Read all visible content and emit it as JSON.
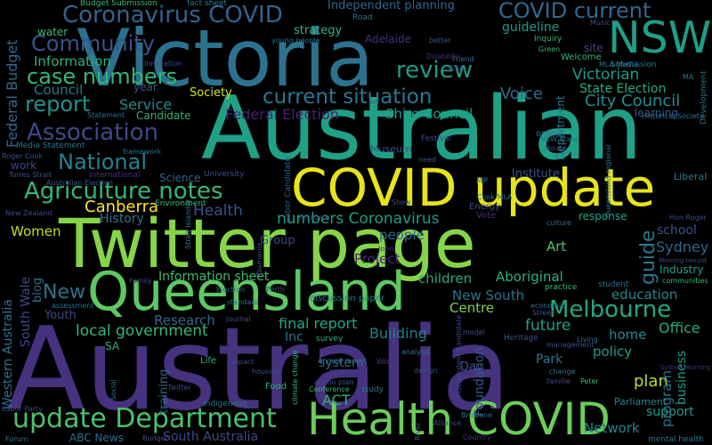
{
  "words": [
    {
      "text": "Australia",
      "color": "#46327e"
    },
    {
      "text": "Australian",
      "color": "#1fa187"
    },
    {
      "text": "Victoria",
      "color": "#2c728e"
    },
    {
      "text": "Twitter page",
      "color": "#86d549"
    },
    {
      "text": "COVID update",
      "color": "#e7e419"
    },
    {
      "text": "Queensland",
      "color": "#5ec962"
    },
    {
      "text": "NSW",
      "color": "#1f9e89"
    },
    {
      "text": "Health COVID",
      "color": "#6ccd5a"
    },
    {
      "text": "update Department",
      "color": "#4ac16d"
    },
    {
      "text": "Coronavirus COVID",
      "color": "#33638d"
    },
    {
      "text": "COVID current",
      "color": "#31688e"
    },
    {
      "text": "Community",
      "color": "#3b528b"
    },
    {
      "text": "case numbers",
      "color": "#35b779"
    },
    {
      "text": "report",
      "color": "#21918c"
    },
    {
      "text": "Association",
      "color": "#3e4989"
    },
    {
      "text": "current situation",
      "color": "#2a788e"
    },
    {
      "text": "National",
      "color": "#26828e"
    },
    {
      "text": "Agriculture notes",
      "color": "#35b779"
    },
    {
      "text": "Melbourne",
      "color": "#22a884"
    },
    {
      "text": "review",
      "color": "#1f9a8a"
    },
    {
      "text": "Victorian",
      "color": "#1e9b8a"
    },
    {
      "text": "City Council",
      "color": "#218e8d"
    },
    {
      "text": "Voice",
      "color": "#2f6c8e"
    },
    {
      "text": "Federal Budget",
      "color": "#31688e"
    },
    {
      "text": "Information",
      "color": "#2db27d"
    },
    {
      "text": "Council",
      "color": "#2a788e"
    },
    {
      "text": "Service",
      "color": "#238a8d"
    },
    {
      "text": "Society",
      "color": "#d5e21a"
    },
    {
      "text": "Federal Election",
      "color": "#482173"
    },
    {
      "text": "Shire Council",
      "color": "#1f9e89"
    },
    {
      "text": "State Election",
      "color": "#25ab82"
    },
    {
      "text": "Canberra",
      "color": "#fde725"
    },
    {
      "text": "Health",
      "color": "#3b528b"
    },
    {
      "text": "History",
      "color": "#2c728e"
    },
    {
      "text": "Women",
      "color": "#c2df23"
    },
    {
      "text": "Information sheet",
      "color": "#3bbb75"
    },
    {
      "text": "New",
      "color": "#2c728e"
    },
    {
      "text": "New South",
      "color": "#2c728e"
    },
    {
      "text": "South Wale",
      "color": "#3e4989"
    },
    {
      "text": "Western Australia",
      "color": "#2c728e"
    },
    {
      "text": "numbers Coronavirus",
      "color": "#1f9e89"
    },
    {
      "text": "people",
      "color": "#31688e"
    },
    {
      "text": "Project",
      "color": "#482878"
    },
    {
      "text": "children",
      "color": "#25ab82"
    },
    {
      "text": "Aboriginal",
      "color": "#2db27d"
    },
    {
      "text": "final report",
      "color": "#22a884"
    },
    {
      "text": "local government",
      "color": "#35b779"
    },
    {
      "text": "Research",
      "color": "#31688e"
    },
    {
      "text": "Youth",
      "color": "#3e4989"
    },
    {
      "text": "Centre",
      "color": "#7ad151"
    },
    {
      "text": "future",
      "color": "#20a386"
    },
    {
      "text": "education",
      "color": "#26828e"
    },
    {
      "text": "home",
      "color": "#23898e"
    },
    {
      "text": "policy",
      "color": "#1f9e89"
    },
    {
      "text": "plan",
      "color": "#b5de2b"
    },
    {
      "text": "Park",
      "color": "#2c728e"
    },
    {
      "text": "Building",
      "color": "#287c8e"
    },
    {
      "text": "Foundation",
      "color": "#38588c"
    },
    {
      "text": "ACT",
      "color": "#2db27d"
    },
    {
      "text": "system",
      "color": "#33638d"
    },
    {
      "text": "Network",
      "color": "#25858e"
    },
    {
      "text": "South Australia",
      "color": "#3e4989"
    },
    {
      "text": "ABC News",
      "color": "#2c728e"
    },
    {
      "text": "support",
      "color": "#1f9a8a"
    },
    {
      "text": "Office",
      "color": "#25ab82"
    },
    {
      "text": "Sydney",
      "color": "#31688e"
    },
    {
      "text": "school",
      "color": "#3b528b"
    },
    {
      "text": "response",
      "color": "#20a386"
    },
    {
      "text": "Art",
      "color": "#54c568"
    },
    {
      "text": "guide",
      "color": "#2a788e"
    },
    {
      "text": "blog",
      "color": "#2d708e"
    },
    {
      "text": "program",
      "color": "#2c728e"
    },
    {
      "text": "training",
      "color": "#31688e"
    },
    {
      "text": "business",
      "color": "#1f9e89"
    },
    {
      "text": "Independent planning",
      "color": "#31688e"
    },
    {
      "text": "guideline",
      "color": "#1f9a8a"
    },
    {
      "text": "strategy",
      "color": "#2db27d"
    },
    {
      "text": "water",
      "color": "#3bbb75"
    },
    {
      "text": "Adelaide",
      "color": "#46327e"
    },
    {
      "text": "year",
      "color": "#3b528b"
    },
    {
      "text": "Candidate",
      "color": "#2db27d"
    },
    {
      "text": "Department",
      "color": "#2a788e"
    },
    {
      "text": "learning",
      "color": "#3b528b"
    },
    {
      "text": "Group",
      "color": "#3e4989"
    },
    {
      "text": "Science",
      "color": "#33638d"
    },
    {
      "text": "Institute",
      "color": "#3b528b"
    },
    {
      "text": "Inc",
      "color": "#2a788e"
    },
    {
      "text": "Museum",
      "color": "#3b528b"
    },
    {
      "text": "Industry",
      "color": "#1f9e89"
    },
    {
      "text": "work",
      "color": "#3e4989"
    },
    {
      "text": "Budget Submission",
      "color": "#3bbb75"
    },
    {
      "text": "fact sheet",
      "color": "#287c8e"
    },
    {
      "text": "Road",
      "color": "#2c728e"
    },
    {
      "text": "site",
      "color": "#3e4989"
    },
    {
      "text": "Submission",
      "color": "#2a788e"
    },
    {
      "text": "Development",
      "color": "#2c728e"
    },
    {
      "text": "Welcome",
      "color": "#35b779"
    },
    {
      "text": "Inquiry",
      "color": "#35b779"
    },
    {
      "text": "Liberal",
      "color": "#2a788e"
    },
    {
      "text": "Energy",
      "color": "#3e4989"
    },
    {
      "text": "Vote",
      "color": "#46327e"
    },
    {
      "text": "MP",
      "color": "#2c728e"
    },
    {
      "text": "online",
      "color": "#2c728e"
    },
    {
      "text": "Festival",
      "color": "#3e4989"
    },
    {
      "text": "University",
      "color": "#3b528b"
    },
    {
      "text": "Environment",
      "color": "#3bbb75"
    },
    {
      "text": "International",
      "color": "#46327e"
    },
    {
      "text": "Media Statement",
      "color": "#2a788e"
    },
    {
      "text": "Statement",
      "color": "#2c728e"
    },
    {
      "text": "Roger Cook",
      "color": "#3b528b"
    },
    {
      "text": "Torres Strait",
      "color": "#3b528b"
    },
    {
      "text": "Labor Candidate",
      "color": "#33638d"
    },
    {
      "text": "discussion paper",
      "color": "#2a788e"
    },
    {
      "text": "standard",
      "color": "#2c728e"
    },
    {
      "text": "Election",
      "color": "#2c728e"
    },
    {
      "text": "Perth",
      "color": "#3b528b"
    },
    {
      "text": "Heritage",
      "color": "#3b528b"
    },
    {
      "text": "World",
      "color": "#46327e"
    },
    {
      "text": "Life",
      "color": "#2db27d"
    },
    {
      "text": "Twitter",
      "color": "#3e4989"
    },
    {
      "text": "Food",
      "color": "#2db27d"
    },
    {
      "text": "Conference",
      "color": "#35b779"
    },
    {
      "text": "study",
      "color": "#2a788e"
    },
    {
      "text": "Day",
      "color": "#3b528b"
    },
    {
      "text": "Parliament",
      "color": "#25858e"
    },
    {
      "text": "Brisbane",
      "color": "#2c728e"
    },
    {
      "text": "mental health",
      "color": "#2a788e"
    },
    {
      "text": "student",
      "color": "#2c728e"
    },
    {
      "text": "practice",
      "color": "#3bbb75"
    },
    {
      "text": "communities",
      "color": "#35b779"
    },
    {
      "text": "economic",
      "color": "#2c728e"
    },
    {
      "text": "Street",
      "color": "#3b528b"
    },
    {
      "text": "journal",
      "color": "#3b528b"
    },
    {
      "text": "survey",
      "color": "#2db27d"
    },
    {
      "text": "climate change",
      "color": "#35b779"
    },
    {
      "text": "Sport",
      "color": "#3e4989"
    },
    {
      "text": "analysis",
      "color": "#2a788e"
    },
    {
      "text": "design",
      "color": "#3b528b"
    },
    {
      "text": "change",
      "color": "#2c728e"
    },
    {
      "text": "familie",
      "color": "#3e4989"
    },
    {
      "text": "Peter",
      "color": "#3bbb75"
    },
    {
      "text": "Indigenous",
      "color": "#2a788e"
    },
    {
      "text": "Alliance",
      "color": "#3b528b"
    },
    {
      "text": "Country",
      "color": "#46327e"
    },
    {
      "text": "River",
      "color": "#3b528b"
    },
    {
      "text": "Forum",
      "color": "#2c728e"
    },
    {
      "text": "Labor Party",
      "color": "#3e4989"
    },
    {
      "text": "SA",
      "color": "#2db27d"
    },
    {
      "text": "young people",
      "color": "#2a788e"
    },
    {
      "text": "Green",
      "color": "#35b779"
    },
    {
      "text": "Music",
      "color": "#3b528b"
    },
    {
      "text": "better",
      "color": "#3b528b"
    },
    {
      "text": "Friend",
      "color": "#2c728e"
    },
    {
      "text": "Club",
      "color": "#3b528b"
    },
    {
      "text": "Innovation",
      "color": "#3b528b"
    },
    {
      "text": "framework",
      "color": "#2c728e"
    },
    {
      "text": "Family",
      "color": "#3e4989"
    },
    {
      "text": "Historical Society",
      "color": "#2c728e"
    },
    {
      "text": "NSW State",
      "color": "#2c728e"
    },
    {
      "text": "House",
      "color": "#3b528b"
    },
    {
      "text": "Cook MLA",
      "color": "#2c728e"
    },
    {
      "text": "Hon Roger",
      "color": "#3e4989"
    },
    {
      "text": "culture",
      "color": "#2c728e"
    },
    {
      "text": "Show",
      "color": "#3b528b"
    },
    {
      "text": "John",
      "color": "#46327e"
    },
    {
      "text": "resource",
      "color": "#3b528b"
    },
    {
      "text": "New Zealand",
      "color": "#3e4989"
    },
    {
      "text": "Tasmania",
      "color": "#3b528b"
    },
    {
      "text": "Morning Herald",
      "color": "#3e4989"
    },
    {
      "text": "Sydney Morning",
      "color": "#46327e"
    },
    {
      "text": "Living",
      "color": "#2c728e"
    },
    {
      "text": "management",
      "color": "#3b528b"
    },
    {
      "text": "Annual report",
      "color": "#2c728e"
    },
    {
      "text": "action plan",
      "color": "#3b528b"
    },
    {
      "text": "impact",
      "color": "#3e4989"
    },
    {
      "text": "housing",
      "color": "#3b528b"
    },
    {
      "text": "Social",
      "color": "#2c728e"
    },
    {
      "text": "Budget",
      "color": "#3e4989"
    },
    {
      "text": "need",
      "color": "#3b528b"
    },
    {
      "text": "Disability",
      "color": "#46327e"
    },
    {
      "text": "Strait Islander",
      "color": "#2a788e"
    },
    {
      "text": "Queensland regional",
      "color": "#2c728e"
    },
    {
      "text": "Independent Candidate",
      "color": "#3e4989"
    },
    {
      "text": "MLA Media",
      "color": "#2c728e"
    },
    {
      "text": "MA",
      "color": "#2c728e"
    },
    {
      "text": "model",
      "color": "#3b528b"
    },
    {
      "text": "assessment",
      "color": "#2c728e"
    },
    {
      "text": "Australian Election",
      "color": "#3b528b"
    }
  ]
}
